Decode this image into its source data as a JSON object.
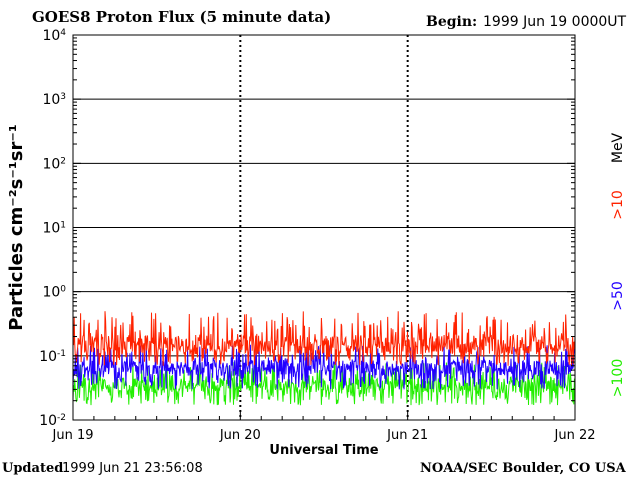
{
  "header": {
    "title": "GOES8 Proton Flux (5 minute data)",
    "begin_label": "Begin:",
    "begin_value": "1999 Jun 19 0000UT"
  },
  "footer": {
    "updated_label": "Updated",
    "updated_value": "1999 Jun 21 23:56:08",
    "credit": "NOAA/SEC Boulder, CO USA"
  },
  "chart_data": {
    "type": "line",
    "title": "GOES8 Proton Flux (5 minute data)",
    "xlabel": "Universal Time",
    "ylabel": "Particles cm⁻²s⁻¹sr⁻¹",
    "y_scale": "log",
    "ylim": [
      0.01,
      10000
    ],
    "y_ticks": [
      {
        "base": "10",
        "exp": "-2"
      },
      {
        "base": "10",
        "exp": "-1"
      },
      {
        "base": "10",
        "exp": "0"
      },
      {
        "base": "10",
        "exp": "1"
      },
      {
        "base": "10",
        "exp": "2"
      },
      {
        "base": "10",
        "exp": "3"
      },
      {
        "base": "10",
        "exp": "4"
      }
    ],
    "x_range": [
      "1999-06-19 00:00",
      "1999-06-22 00:00"
    ],
    "x_ticks": [
      "Jun 19",
      "Jun 20",
      "Jun 21",
      "Jun 22"
    ],
    "grid": true,
    "legend_position": "right",
    "right_labels": [
      {
        "text": ">10",
        "color": "#ff2200"
      },
      {
        "text": "MeV",
        "color": "#000000"
      },
      {
        "text": ">50",
        "color": "#2200ff"
      },
      {
        "text": ">100",
        "color": "#22ee00"
      }
    ],
    "series": [
      {
        "name": ">10 MeV",
        "color": "#ff2200",
        "typical": 0.15,
        "range": [
          0.07,
          0.5
        ]
      },
      {
        "name": ">50 MeV",
        "color": "#2200ff",
        "typical": 0.065,
        "range": [
          0.03,
          0.15
        ]
      },
      {
        "name": ">100 MeV",
        "color": "#22ee00",
        "typical": 0.035,
        "range": [
          0.017,
          0.08
        ]
      }
    ]
  }
}
